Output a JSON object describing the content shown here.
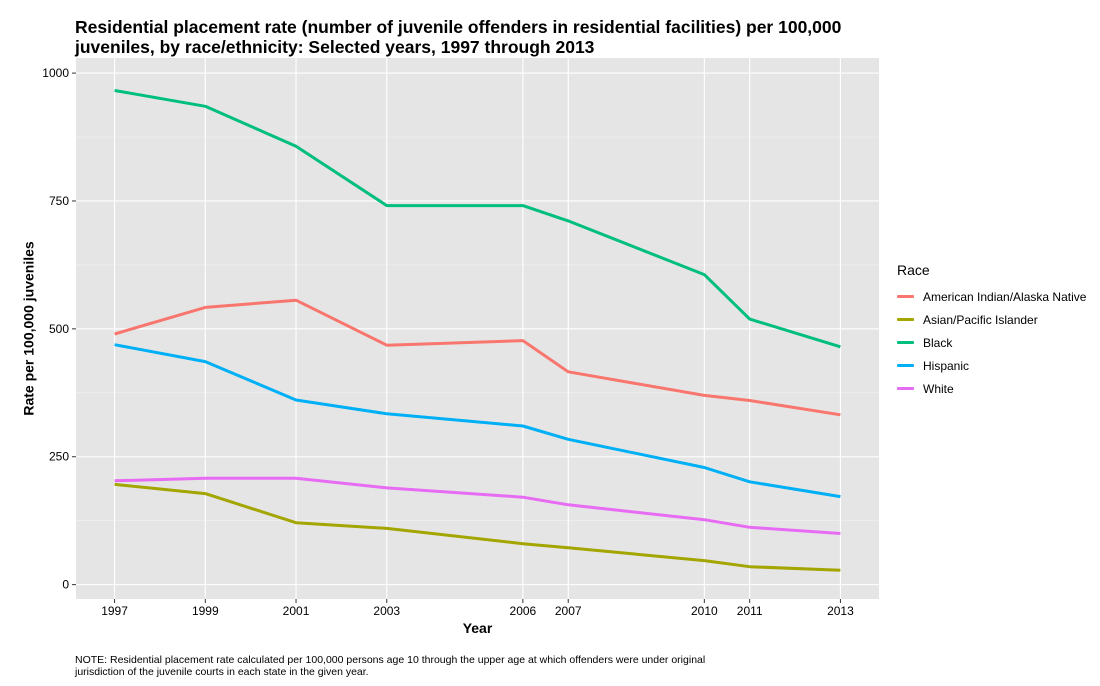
{
  "chart_data": {
    "type": "line",
    "title_line1": "Residential placement rate (number of juvenile offenders in residential facilities) per 100,000",
    "title_line2": "juveniles, by race/ethnicity: Selected years, 1997 through 2013",
    "xlabel": "Year",
    "ylabel": "Rate per 100,000 juveniles",
    "x": [
      1997,
      1999,
      2001,
      2003,
      2006,
      2007,
      2010,
      2011,
      2013
    ],
    "xlim": [
      1996.15,
      2013.85
    ],
    "ylim": [
      -28.1,
      1029.5
    ],
    "yticks": [
      0,
      250,
      500,
      750,
      1000
    ],
    "grid": true,
    "legend_title": "Race",
    "legend_position": "right",
    "background": "#E5E5E5",
    "series": [
      {
        "name": "American Indian/Alaska Native",
        "color": "#F8766D",
        "values": [
          490,
          542,
          556,
          468,
          477,
          416,
          null,
          360,
          332
        ],
        "extra_points": [
          {
            "x": 2010,
            "y": 370
          }
        ]
      },
      {
        "name": "Asian/Pacific Islander",
        "color": "#A3A500",
        "values": [
          196,
          178,
          121,
          110,
          80,
          72,
          47,
          35,
          28
        ]
      },
      {
        "name": "Black",
        "color": "#00BF7D",
        "values": [
          966,
          935,
          857,
          741,
          741,
          711,
          606,
          519,
          465
        ]
      },
      {
        "name": "Hispanic",
        "color": "#00B0F6",
        "values": [
          469,
          436,
          361,
          334,
          310,
          284,
          229,
          201,
          172
        ]
      },
      {
        "name": "White",
        "color": "#E76BF3",
        "values": [
          203,
          208,
          208,
          189,
          171,
          156,
          127,
          112,
          100
        ]
      }
    ]
  },
  "note": {
    "line1": "NOTE: Residential placement rate calculated per 100,000 persons age 10 through the upper age at which offenders were under original",
    "line2": "jurisdiction of the juvenile courts in each state in the given year."
  }
}
